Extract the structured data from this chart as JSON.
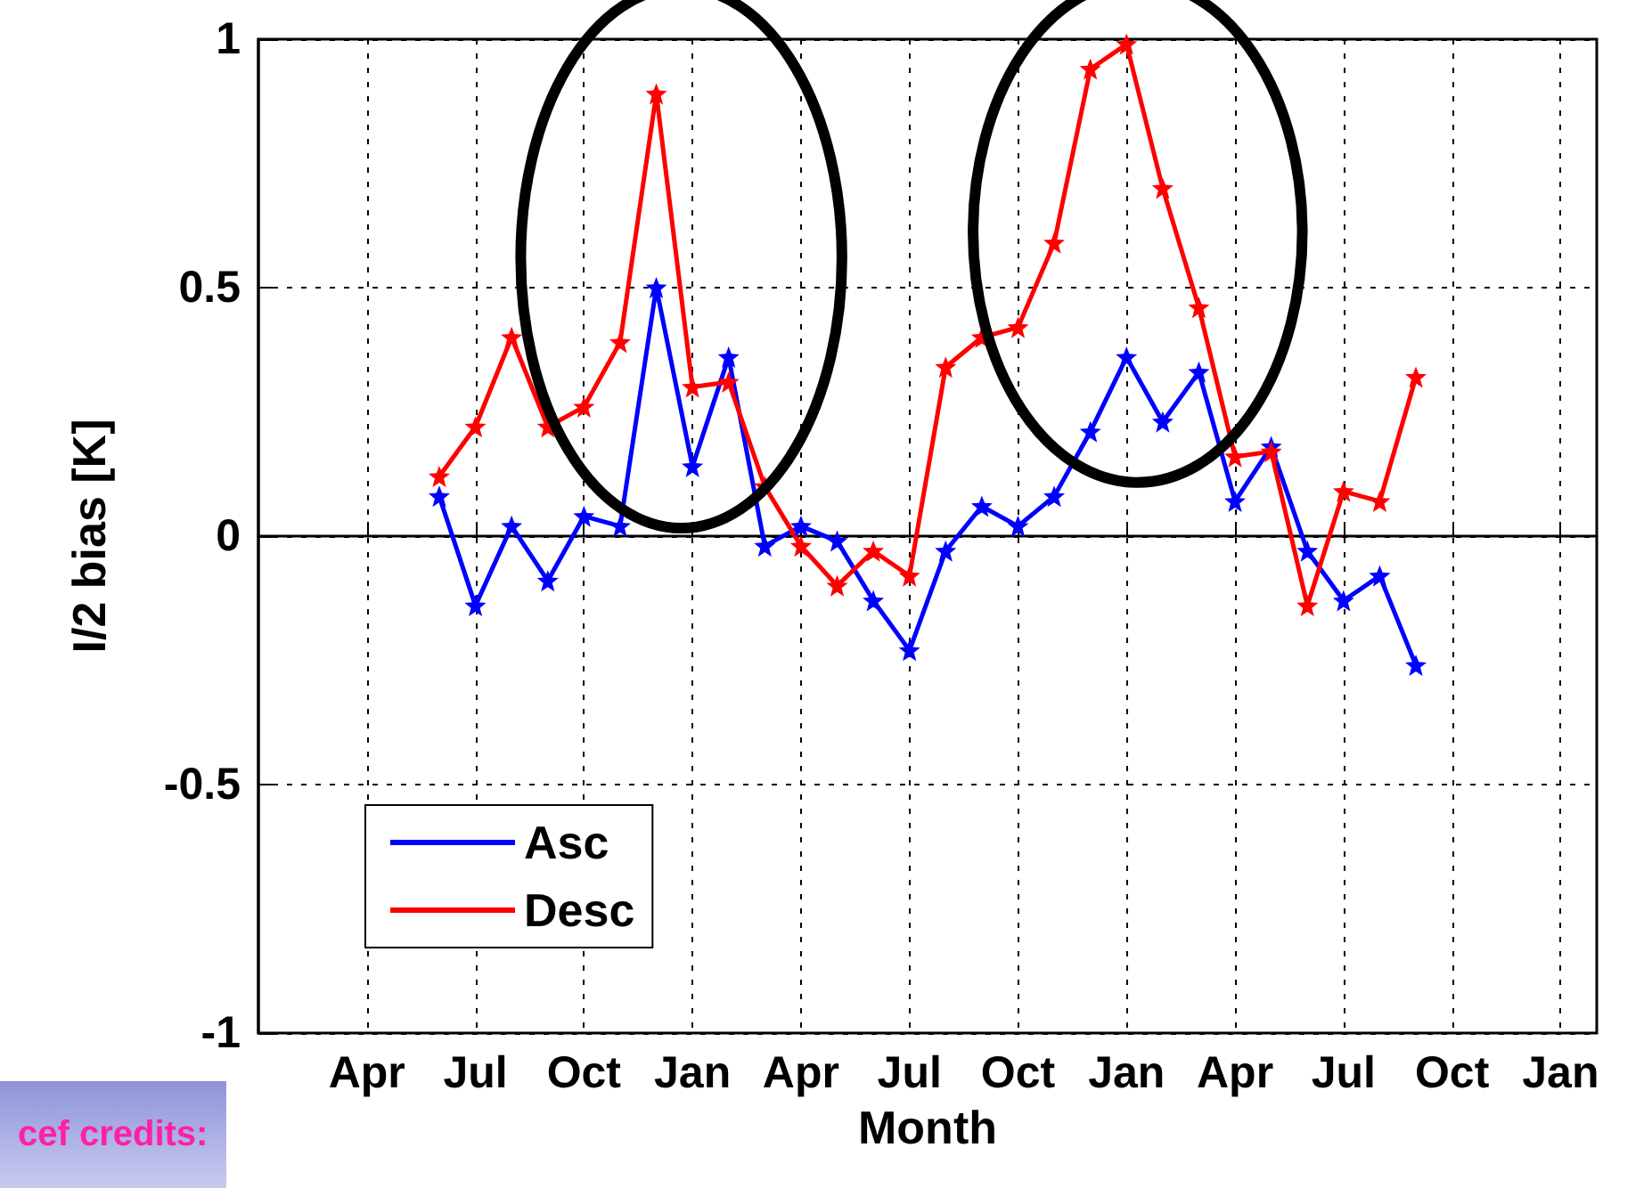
{
  "chart_data": {
    "type": "line",
    "xlabel": "Month",
    "ylabel": "I/2 bias [K]",
    "categories": [
      null,
      null,
      null,
      "Apr",
      null,
      null,
      "Jul",
      null,
      null,
      "Oct",
      null,
      null,
      "Jan",
      null,
      null,
      "Apr",
      null,
      null,
      "Jul",
      null,
      null,
      "Oct",
      null,
      null,
      "Jan",
      null,
      null,
      "Apr",
      null,
      null,
      "Jul",
      null,
      null,
      "Oct",
      null,
      null,
      "Jan",
      null
    ],
    "series": [
      {
        "name": "Asc",
        "color": "#0000ff",
        "values": [
          null,
          null,
          null,
          null,
          null,
          0.08,
          -0.14,
          0.02,
          -0.09,
          0.04,
          0.02,
          0.5,
          0.14,
          0.36,
          -0.02,
          0.02,
          -0.01,
          -0.13,
          -0.23,
          -0.03,
          0.06,
          0.02,
          0.08,
          0.21,
          0.36,
          0.23,
          0.33,
          0.07,
          0.18,
          -0.03,
          -0.13,
          -0.08,
          -0.26,
          null,
          null,
          null,
          null,
          null
        ]
      },
      {
        "name": "Desc",
        "color": "#ff0000",
        "values": [
          null,
          null,
          null,
          null,
          null,
          0.12,
          0.22,
          0.4,
          0.22,
          0.26,
          0.39,
          0.89,
          0.3,
          0.31,
          0.1,
          -0.02,
          -0.1,
          -0.03,
          -0.08,
          0.34,
          0.4,
          0.42,
          0.59,
          0.94,
          0.99,
          0.7,
          0.46,
          0.16,
          0.17,
          -0.14,
          0.09,
          0.07,
          0.32,
          null,
          null,
          null,
          null,
          null
        ]
      }
    ],
    "ylim": [
      -1,
      1
    ],
    "yticks": [
      -1,
      -0.5,
      0,
      0.5,
      1
    ],
    "grid": true,
    "legend": "bottom left",
    "marker": "star",
    "line_style": "solid",
    "annotations": [
      "cef credits:"
    ]
  }
}
